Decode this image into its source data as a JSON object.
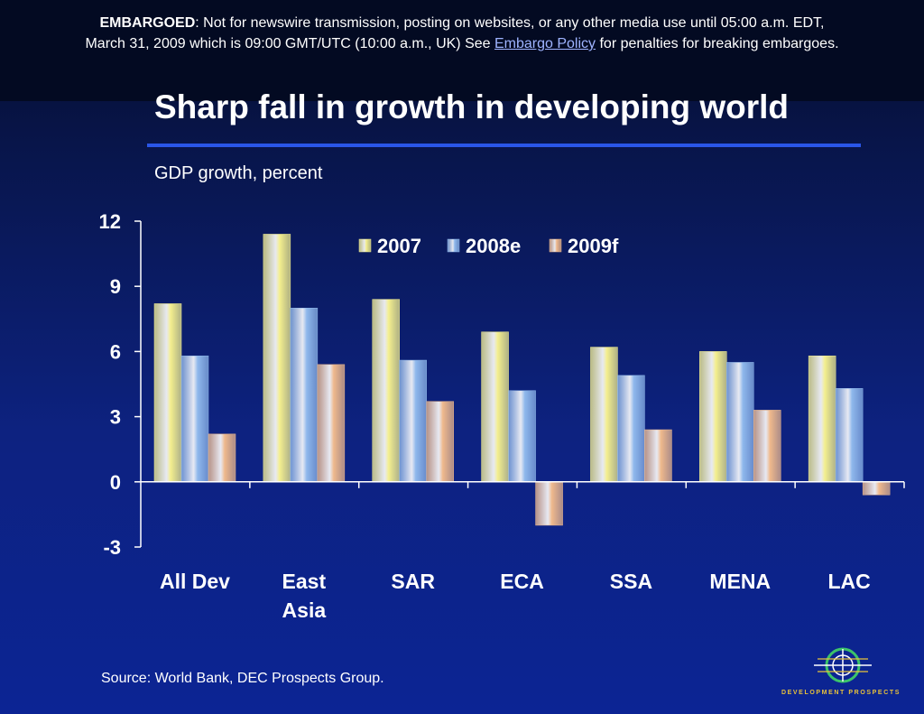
{
  "embargo": {
    "label": "EMBARGOED",
    "line1": ": Not for newswire transmission, posting on websites, or any other media use until 05:00 a.m. EDT,",
    "line2_pre": "March 31, 2009 which is 09:00 GMT/UTC (10:00 a.m., UK) See ",
    "link": "Embargo Policy",
    "line2_post": " for penalties for breaking embargoes."
  },
  "title": "Sharp fall in growth in developing world",
  "subtitle": "GDP growth, percent",
  "source": "Source: World Bank, DEC Prospects Group.",
  "logo_text": "DEVELOPMENT PROSPECTS",
  "colors": {
    "accent_rule": "#2a56e8",
    "series_2007": "#f4ef8e",
    "series_2008e": "#8fb8ec",
    "series_2009f": "#efb98c"
  },
  "chart_data": {
    "type": "bar",
    "categories": [
      [
        "All Dev"
      ],
      [
        "East",
        "Asia"
      ],
      [
        "SAR"
      ],
      [
        "ECA"
      ],
      [
        "SSA"
      ],
      [
        "MENA"
      ],
      [
        "LAC"
      ]
    ],
    "series": [
      {
        "name": "2007",
        "values": [
          8.2,
          11.4,
          8.4,
          6.9,
          6.2,
          6.0,
          5.8
        ]
      },
      {
        "name": "2008e",
        "values": [
          5.8,
          8.0,
          5.6,
          4.2,
          4.9,
          5.5,
          4.3
        ]
      },
      {
        "name": "2009f",
        "values": [
          2.2,
          5.4,
          3.7,
          -2.0,
          2.4,
          3.3,
          -0.6
        ]
      }
    ],
    "ylim": [
      -3,
      12
    ],
    "yticks": [
      12,
      9,
      6,
      3,
      0,
      -3
    ],
    "legend_position": "top-center",
    "grid": false
  }
}
